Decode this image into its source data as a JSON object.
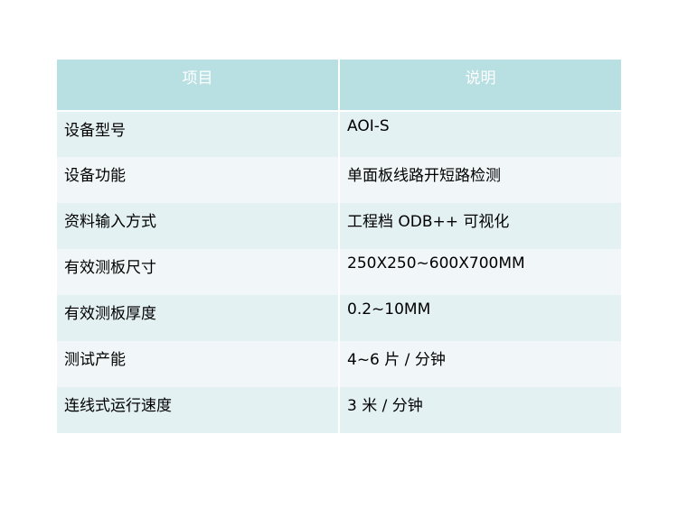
{
  "table": {
    "headers": [
      "项目",
      "说明"
    ],
    "rows": [
      [
        "设备型号",
        "AOI-S"
      ],
      [
        "设备功能",
        "单面板线路开短路检测"
      ],
      [
        "资料输入方式",
        "工程档 ODB++ 可视化"
      ],
      [
        "有效测板尺寸",
        "250X250~600X700MM"
      ],
      [
        "有效测板厚度",
        "0.2~10MM"
      ],
      [
        "测试产能",
        "4~6 片 / 分钟"
      ],
      [
        "连线式运行速度",
        "3 米 / 分钟"
      ]
    ]
  },
  "colors": {
    "header": "#b8dfe2",
    "row_odd": "#e4f1f3",
    "row_even": "#f1f7f9"
  }
}
